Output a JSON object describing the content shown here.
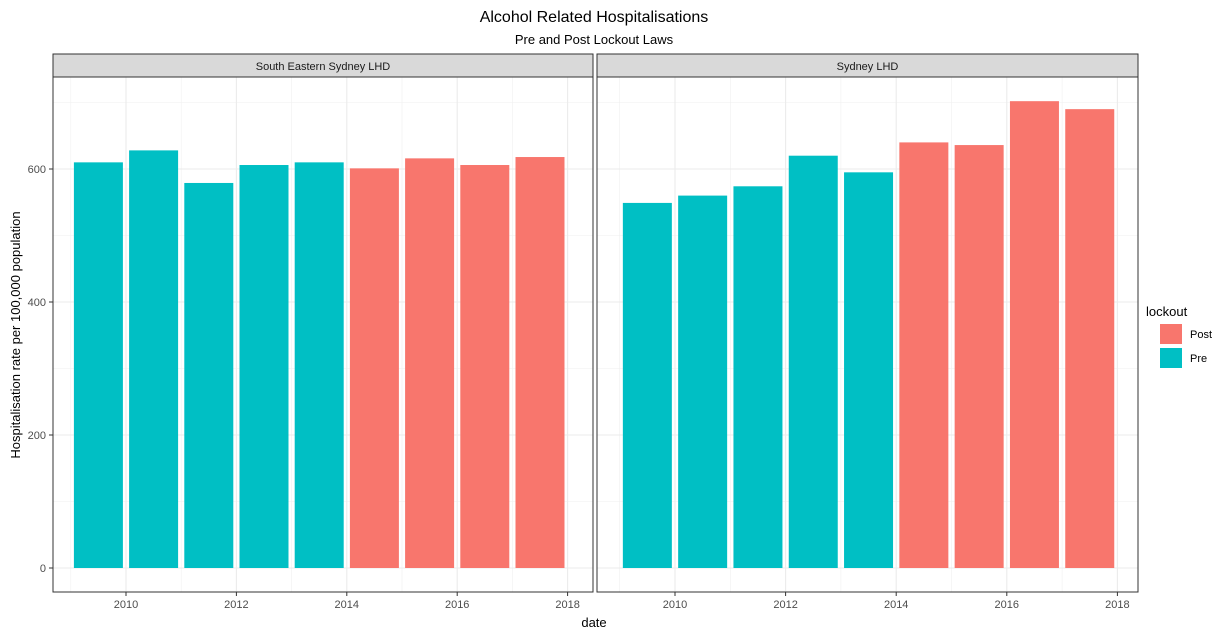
{
  "chart_data": {
    "type": "bar",
    "title": "Alcohol Related Hospitalisations",
    "subtitle": "Pre and Post Lockout Laws",
    "xlabel": "date",
    "ylabel": "Hospitalisation rate per 100,000 population",
    "xlim": [
      2009,
      2018.2
    ],
    "ylim": [
      0,
      720
    ],
    "x_ticks": [
      2010,
      2012,
      2014,
      2016,
      2018
    ],
    "y_ticks": [
      0,
      200,
      400,
      600
    ],
    "grid": true,
    "legend": {
      "title": "lockout",
      "position": "right",
      "entries": [
        {
          "name": "Post",
          "color": "#F8766D"
        },
        {
          "name": "Pre",
          "color": "#00BFC4"
        }
      ]
    },
    "panels": [
      {
        "name": "South Eastern Sydney LHD",
        "bars": [
          {
            "x": 2009.5,
            "value": 610,
            "group": "Pre"
          },
          {
            "x": 2010.5,
            "value": 628,
            "group": "Pre"
          },
          {
            "x": 2011.5,
            "value": 579,
            "group": "Pre"
          },
          {
            "x": 2012.5,
            "value": 606,
            "group": "Pre"
          },
          {
            "x": 2013.5,
            "value": 610,
            "group": "Pre"
          },
          {
            "x": 2014.5,
            "value": 601,
            "group": "Post"
          },
          {
            "x": 2015.5,
            "value": 616,
            "group": "Post"
          },
          {
            "x": 2016.5,
            "value": 606,
            "group": "Post"
          },
          {
            "x": 2017.5,
            "value": 618,
            "group": "Post"
          }
        ]
      },
      {
        "name": "Sydney LHD",
        "bars": [
          {
            "x": 2009.5,
            "value": 549,
            "group": "Pre"
          },
          {
            "x": 2010.5,
            "value": 560,
            "group": "Pre"
          },
          {
            "x": 2011.5,
            "value": 574,
            "group": "Pre"
          },
          {
            "x": 2012.5,
            "value": 620,
            "group": "Pre"
          },
          {
            "x": 2013.5,
            "value": 595,
            "group": "Pre"
          },
          {
            "x": 2014.5,
            "value": 640,
            "group": "Post"
          },
          {
            "x": 2015.5,
            "value": 636,
            "group": "Post"
          },
          {
            "x": 2016.5,
            "value": 702,
            "group": "Post"
          },
          {
            "x": 2017.5,
            "value": 690,
            "group": "Post"
          }
        ]
      }
    ]
  }
}
